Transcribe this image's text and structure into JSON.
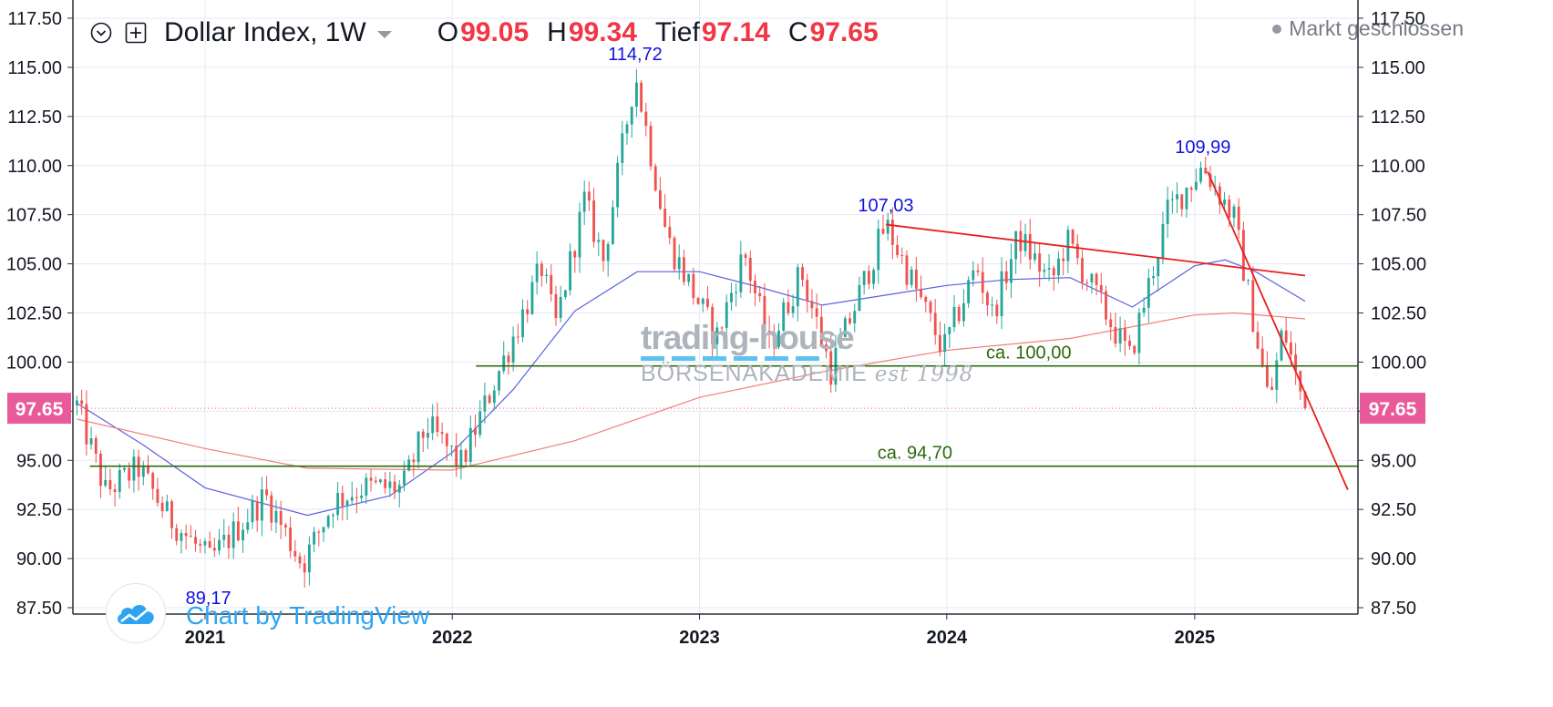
{
  "header": {
    "title": "Dollar Index, 1W",
    "open_label": "O",
    "open_value": "99.05",
    "high_label": "H",
    "high_value": "99.34",
    "low_label": "Tief",
    "low_value": "97.14",
    "close_label": "C",
    "close_value": "97.65",
    "market_status": "Markt geschlossen"
  },
  "watermark": {
    "tradingview": "Chart by TradingView",
    "logo_line1": "trading-house",
    "logo_line2": "BÖRSENAKADEMIE",
    "logo_line3": "est 1998"
  },
  "colors": {
    "up": "#26a69a",
    "down": "#ef5350",
    "ma_short": "#5b5fe0",
    "ma_long": "#f07f7a",
    "support": "#2d6a0f",
    "trend": "#e81f1f",
    "annotation": "#1010e0",
    "price_badge": "#e85a9a",
    "grid": "#e6e9f5"
  },
  "chart_data": {
    "type": "candlestick",
    "title": "Dollar Index, 1W",
    "y_range": [
      87.5,
      117.5
    ],
    "y_ticks": [
      "87.50",
      "90.00",
      "92.50",
      "95.00",
      "97.50",
      "100.00",
      "102.50",
      "105.00",
      "107.50",
      "110.00",
      "112.50",
      "115.00",
      "117.50"
    ],
    "x_range": [
      "2020-06-20",
      "2025-08-30"
    ],
    "x_ticks": [
      {
        "date": "2021-01-01",
        "label": "2021"
      },
      {
        "date": "2022-01-01",
        "label": "2022"
      },
      {
        "date": "2023-01-01",
        "label": "2023"
      },
      {
        "date": "2024-01-01",
        "label": "2024"
      },
      {
        "date": "2025-01-01",
        "label": "2025"
      }
    ],
    "last_price": "97.65",
    "price_anchors": [
      [
        "2020-06-26",
        97.8
      ],
      [
        "2020-08-07",
        93.4
      ],
      [
        "2020-09-25",
        94.6
      ],
      [
        "2020-11-06",
        92.2
      ],
      [
        "2021-01-08",
        89.9
      ],
      [
        "2021-03-31",
        93.2
      ],
      [
        "2021-05-25",
        89.7
      ],
      [
        "2021-07-10",
        92.9
      ],
      [
        "2021-08-20",
        93.6
      ],
      [
        "2021-10-20",
        93.6
      ],
      [
        "2021-11-24",
        96.8
      ],
      [
        "2022-01-14",
        94.8
      ],
      [
        "2022-03-08",
        99.3
      ],
      [
        "2022-05-13",
        104.8
      ],
      [
        "2022-06-02",
        101.8
      ],
      [
        "2022-07-15",
        108.2
      ],
      [
        "2022-08-12",
        105.2
      ],
      [
        "2022-09-28",
        114.72
      ],
      [
        "2022-11-15",
        106.2
      ],
      [
        "2023-01-26",
        101.2
      ],
      [
        "2023-03-08",
        105.6
      ],
      [
        "2023-04-14",
        100.8
      ],
      [
        "2023-05-31",
        104.6
      ],
      [
        "2023-07-14",
        99.6
      ],
      [
        "2023-10-03",
        107.03
      ],
      [
        "2023-12-27",
        100.6
      ],
      [
        "2024-02-14",
        104.9
      ],
      [
        "2024-03-08",
        102.4
      ],
      [
        "2024-04-16",
        106.4
      ],
      [
        "2024-06-03",
        104.0
      ],
      [
        "2024-06-26",
        106.2
      ],
      [
        "2024-09-27",
        100.2
      ],
      [
        "2024-11-22",
        107.6
      ],
      [
        "2025-01-13",
        109.99
      ],
      [
        "2025-02-28",
        107.3
      ],
      [
        "2025-04-21",
        97.9
      ],
      [
        "2025-05-12",
        101.8
      ],
      [
        "2025-05-30",
        99.3
      ],
      [
        "2025-06-13",
        97.65
      ]
    ],
    "moving_averages": [
      {
        "points": [
          [
            "2020-06-26",
            97.9
          ],
          [
            "2020-10-01",
            95.8
          ],
          [
            "2021-01-01",
            93.6
          ],
          [
            "2021-06-01",
            92.2
          ],
          [
            "2021-10-01",
            93.2
          ],
          [
            "2022-01-01",
            95.4
          ],
          [
            "2022-04-01",
            98.6
          ],
          [
            "2022-07-01",
            102.6
          ],
          [
            "2022-10-01",
            104.6
          ],
          [
            "2023-01-01",
            104.6
          ],
          [
            "2023-04-01",
            103.8
          ],
          [
            "2023-07-01",
            102.9
          ],
          [
            "2023-10-01",
            103.4
          ],
          [
            "2024-01-01",
            103.9
          ],
          [
            "2024-04-01",
            104.2
          ],
          [
            "2024-07-01",
            104.3
          ],
          [
            "2024-10-01",
            102.8
          ],
          [
            "2025-01-01",
            104.9
          ],
          [
            "2025-02-15",
            105.2
          ],
          [
            "2025-04-01",
            104.6
          ],
          [
            "2025-06-13",
            103.1
          ]
        ]
      },
      {
        "points": [
          [
            "2020-06-26",
            97.1
          ],
          [
            "2021-01-01",
            95.6
          ],
          [
            "2021-06-01",
            94.6
          ],
          [
            "2022-01-01",
            94.5
          ],
          [
            "2022-07-01",
            96.0
          ],
          [
            "2023-01-01",
            98.2
          ],
          [
            "2023-07-01",
            99.5
          ],
          [
            "2024-01-01",
            100.6
          ],
          [
            "2024-07-01",
            101.2
          ],
          [
            "2025-01-01",
            102.4
          ],
          [
            "2025-03-01",
            102.5
          ],
          [
            "2025-06-13",
            102.2
          ]
        ]
      }
    ],
    "support_lines": [
      {
        "value": 99.8,
        "from": "2022-02-05",
        "label": "ca. 100,00",
        "label_at": "2024-05-01"
      },
      {
        "value": 94.7,
        "from": "2020-07-15",
        "label": "ca. 94,70",
        "label_at": "2023-11-15"
      }
    ],
    "trend_lines": [
      {
        "from": [
          "2023-10-03",
          107.0
        ],
        "to": [
          "2025-06-13",
          104.4
        ]
      },
      {
        "from": [
          "2025-01-20",
          109.7
        ],
        "to": [
          "2025-08-15",
          93.5
        ]
      }
    ],
    "annotations": [
      {
        "text": "114,72",
        "date": "2022-09-28",
        "value": 114.72,
        "position": "above"
      },
      {
        "text": "107,03",
        "date": "2023-10-03",
        "value": 107.03,
        "position": "above"
      },
      {
        "text": "109,99",
        "date": "2025-01-13",
        "value": 109.99,
        "position": "above"
      },
      {
        "text": "89,17",
        "date": "2021-01-06",
        "value": 89.17,
        "position": "below"
      }
    ]
  }
}
